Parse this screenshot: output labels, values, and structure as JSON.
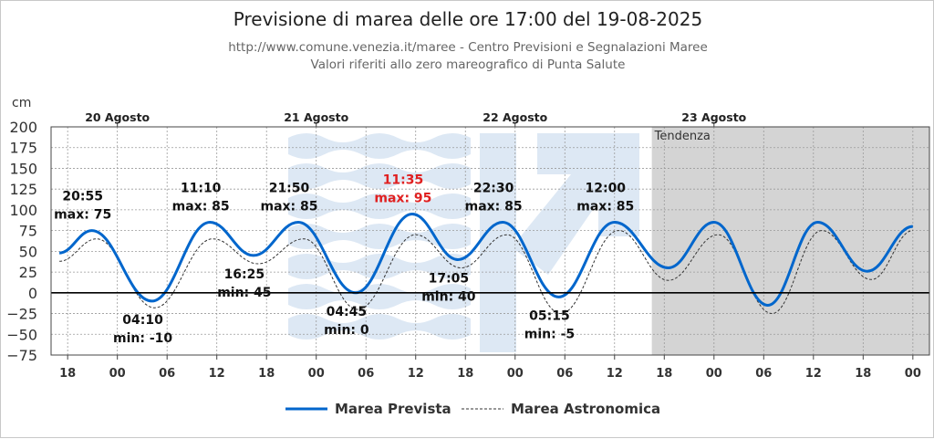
{
  "header": {
    "title": "Previsione di marea delle ore 17:00 del 19-08-2025",
    "subtitle1": "http://www.comune.venezia.it/maree - Centro Previsioni e Segnalazioni Maree",
    "subtitle2": "Valori riferiti allo zero mareografico di Punta Salute"
  },
  "chart_data": {
    "type": "line",
    "ylabel": "cm",
    "ylim": [
      -75,
      200
    ],
    "yticks": [
      200,
      175,
      150,
      125,
      100,
      75,
      50,
      25,
      0,
      -25,
      -50,
      -75
    ],
    "ytick_labels": [
      "200",
      "175",
      "150",
      "125",
      "100",
      "75",
      "50",
      "25",
      "0",
      "−25",
      "−50",
      "−75"
    ],
    "x_unit": "hours since 19-08-2025 18:00",
    "xlim": [
      -2,
      104
    ],
    "xticks": [
      {
        "h": 0,
        "label": "18"
      },
      {
        "h": 6,
        "label": "00"
      },
      {
        "h": 12,
        "label": "06"
      },
      {
        "h": 18,
        "label": "12"
      },
      {
        "h": 24,
        "label": "18"
      },
      {
        "h": 30,
        "label": "00"
      },
      {
        "h": 36,
        "label": "06"
      },
      {
        "h": 42,
        "label": "12"
      },
      {
        "h": 48,
        "label": "18"
      },
      {
        "h": 54,
        "label": "00"
      },
      {
        "h": 60,
        "label": "06"
      },
      {
        "h": 66,
        "label": "12"
      },
      {
        "h": 72,
        "label": "18"
      },
      {
        "h": 78,
        "label": "00"
      },
      {
        "h": 84,
        "label": "06"
      },
      {
        "h": 90,
        "label": "12"
      },
      {
        "h": 96,
        "label": "18"
      },
      {
        "h": 102,
        "label": "00"
      }
    ],
    "day_labels": [
      {
        "h": 6,
        "label": "20 Agosto"
      },
      {
        "h": 30,
        "label": "21 Agosto"
      },
      {
        "h": 54,
        "label": "22 Agosto"
      },
      {
        "h": 78,
        "label": "23 Agosto"
      }
    ],
    "tendenza": {
      "start_h": 70.5,
      "label": "Tendenza"
    },
    "grid": true,
    "legend_position": "bottom",
    "series": [
      {
        "name": "Marea Prevista",
        "style": "solid",
        "color": "#0066cc",
        "points": [
          [
            -1,
            48
          ],
          [
            2.92,
            75
          ],
          [
            10.17,
            -10
          ],
          [
            17.17,
            85
          ],
          [
            22.42,
            45
          ],
          [
            27.83,
            85
          ],
          [
            34.75,
            0
          ],
          [
            41.58,
            95
          ],
          [
            47.08,
            40
          ],
          [
            52.5,
            85
          ],
          [
            59.25,
            -5
          ],
          [
            66,
            85
          ],
          [
            72.5,
            30
          ],
          [
            78,
            85
          ],
          [
            84.5,
            -15
          ],
          [
            90.5,
            85
          ],
          [
            96.5,
            26
          ],
          [
            102,
            80
          ]
        ]
      },
      {
        "name": "Marea Astronomica",
        "style": "dashed",
        "color": "#333333",
        "points": [
          [
            -1,
            38
          ],
          [
            3.5,
            65
          ],
          [
            10.5,
            -18
          ],
          [
            17.5,
            65
          ],
          [
            23,
            35
          ],
          [
            28.5,
            65
          ],
          [
            35,
            -20
          ],
          [
            42,
            70
          ],
          [
            47.5,
            30
          ],
          [
            53,
            70
          ],
          [
            59.5,
            -25
          ],
          [
            66.5,
            75
          ],
          [
            72.5,
            15
          ],
          [
            78.5,
            70
          ],
          [
            85,
            -25
          ],
          [
            91,
            75
          ],
          [
            97,
            16
          ],
          [
            102,
            75
          ]
        ]
      }
    ],
    "annotations": [
      {
        "h": 2.92,
        "value": 75,
        "time": "20:55",
        "label": "max: 75",
        "type": "max",
        "highlight": false
      },
      {
        "h": 10.17,
        "value": -10,
        "time": "04:10",
        "label": "min: -10",
        "type": "min",
        "highlight": false
      },
      {
        "h": 17.17,
        "value": 85,
        "time": "11:10",
        "label": "max: 85",
        "type": "max",
        "highlight": false
      },
      {
        "h": 22.42,
        "value": 45,
        "time": "16:25",
        "label": "min: 45",
        "type": "min",
        "highlight": false
      },
      {
        "h": 27.83,
        "value": 85,
        "time": "21:50",
        "label": "max: 85",
        "type": "max",
        "highlight": false
      },
      {
        "h": 34.75,
        "value": 0,
        "time": "04:45",
        "label": "min: 0",
        "type": "min",
        "highlight": false
      },
      {
        "h": 41.58,
        "value": 95,
        "time": "11:35",
        "label": "max: 95",
        "type": "max",
        "highlight": true
      },
      {
        "h": 47.08,
        "value": 40,
        "time": "17:05",
        "label": "min: 40",
        "type": "min",
        "highlight": false
      },
      {
        "h": 52.5,
        "value": 85,
        "time": "22:30",
        "label": "max: 85",
        "type": "max",
        "highlight": false
      },
      {
        "h": 59.25,
        "value": -5,
        "time": "05:15",
        "label": "min: -5",
        "type": "min",
        "highlight": false
      },
      {
        "h": 66,
        "value": 85,
        "time": "12:00",
        "label": "max: 85",
        "type": "max",
        "highlight": false
      }
    ],
    "colors": {
      "highlight": "#e02020",
      "tendenza_bg": "#d4d4d4",
      "watermark": "#dde8f4"
    }
  }
}
